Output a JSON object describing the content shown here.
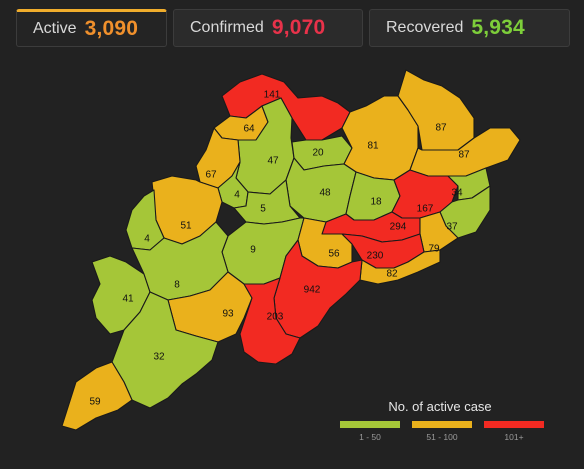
{
  "tabs": [
    {
      "label": "Active",
      "value": "3,090",
      "color": "#f0902c"
    },
    {
      "label": "Confirmed",
      "value": "9,070",
      "color": "#e8324a"
    },
    {
      "label": "Recovered",
      "value": "5,934",
      "color": "#7dce3a"
    }
  ],
  "palette": {
    "green": "#a5c638",
    "orange": "#eab11c",
    "red": "#f22a22"
  },
  "legend": {
    "title": "No. of active case",
    "items": [
      {
        "label": "1 - 50",
        "color": "#a5c638"
      },
      {
        "label": "51 - 100",
        "color": "#eab11c"
      },
      {
        "label": "101+",
        "color": "#f22a22"
      }
    ]
  },
  "districts": [
    {
      "value": "141",
      "category": "red"
    },
    {
      "value": "64",
      "category": "orange"
    },
    {
      "value": "47",
      "category": "green"
    },
    {
      "value": "20",
      "category": "green"
    },
    {
      "value": "81",
      "category": "orange"
    },
    {
      "value": "87",
      "category": "orange"
    },
    {
      "value": "87",
      "category": "orange"
    },
    {
      "value": "67",
      "category": "orange"
    },
    {
      "value": "4",
      "category": "green"
    },
    {
      "value": "48",
      "category": "green"
    },
    {
      "value": "18",
      "category": "green"
    },
    {
      "value": "167",
      "category": "red"
    },
    {
      "value": "34",
      "category": "green"
    },
    {
      "value": "5",
      "category": "green"
    },
    {
      "value": "51",
      "category": "orange"
    },
    {
      "value": "4",
      "category": "green"
    },
    {
      "value": "294",
      "category": "red"
    },
    {
      "value": "37",
      "category": "green"
    },
    {
      "value": "79",
      "category": "orange"
    },
    {
      "value": "9",
      "category": "green"
    },
    {
      "value": "56",
      "category": "orange"
    },
    {
      "value": "230",
      "category": "red"
    },
    {
      "value": "82",
      "category": "orange"
    },
    {
      "value": "41",
      "category": "green"
    },
    {
      "value": "8",
      "category": "green"
    },
    {
      "value": "942",
      "category": "red"
    },
    {
      "value": "93",
      "category": "orange"
    },
    {
      "value": "203",
      "category": "red"
    },
    {
      "value": "32",
      "category": "green"
    },
    {
      "value": "59",
      "category": "orange"
    }
  ]
}
